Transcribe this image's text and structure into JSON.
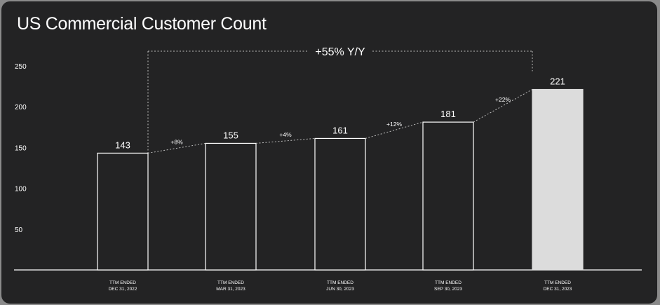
{
  "chart_data": {
    "type": "bar",
    "title": "US Commercial Customer Count",
    "categories": [
      [
        "TTM ENDED",
        "DEC 31, 2022"
      ],
      [
        "TTM ENDED",
        "MAR 31, 2023"
      ],
      [
        "TTM ENDED",
        "JUN 30, 2023"
      ],
      [
        "TTM ENDED",
        "SEP 30, 2023"
      ],
      [
        "TTM ENDED",
        "DEC 31, 2023"
      ]
    ],
    "values": [
      143,
      155,
      161,
      181,
      221
    ],
    "value_labels": [
      "143",
      "155",
      "161",
      "181",
      "221"
    ],
    "growth_labels": [
      "+8%",
      "+4%",
      "+12%",
      "+22%"
    ],
    "overall_growth_label": "+55% Y/Y",
    "yticks": [
      50,
      100,
      150,
      200,
      250
    ],
    "ylim": [
      0,
      250
    ],
    "xlabel": "",
    "ylabel": "",
    "grid": false,
    "legend": "none",
    "highlight_index": 4,
    "colors": {
      "background": "#232324",
      "bar_fill": "#232324",
      "bar_stroke": "#ffffff",
      "highlight_fill": "#dcdcdc",
      "text": "#ffffff",
      "dotted_line": "#bdbdbd"
    }
  }
}
